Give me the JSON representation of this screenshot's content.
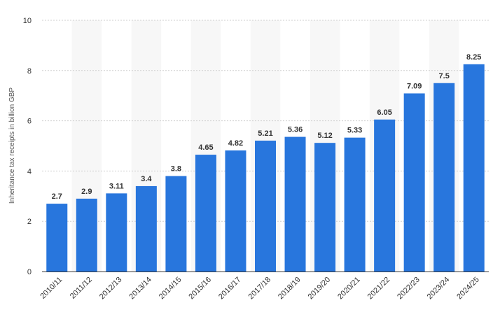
{
  "chart_data": {
    "type": "bar",
    "categories": [
      "2010/11",
      "2011/12",
      "2012/13",
      "2013/14",
      "2014/15",
      "2015/16",
      "2016/17",
      "2017/18",
      "2018/19",
      "2019/20",
      "2020/21",
      "2021/22",
      "2022/23",
      "2023/24",
      "2024/25"
    ],
    "values": [
      2.7,
      2.9,
      3.11,
      3.4,
      3.8,
      4.65,
      4.82,
      5.21,
      5.36,
      5.12,
      5.33,
      6.05,
      7.09,
      7.5,
      8.25
    ],
    "value_labels": [
      "2.7",
      "2.9",
      "3.11",
      "3.4",
      "3.8",
      "4.65",
      "4.82",
      "5.21",
      "5.36",
      "5.12",
      "5.33",
      "6.05",
      "7.09",
      "7.5",
      "8.25"
    ],
    "title": "",
    "xlabel": "",
    "ylabel": "Inheritance tax receipts in billion GBP",
    "ylim": [
      0,
      10
    ],
    "yticks": [
      0,
      2,
      4,
      6,
      8,
      10
    ],
    "grid": true,
    "bar_color": "#2876dd",
    "band_color": "#f7f7f7"
  }
}
